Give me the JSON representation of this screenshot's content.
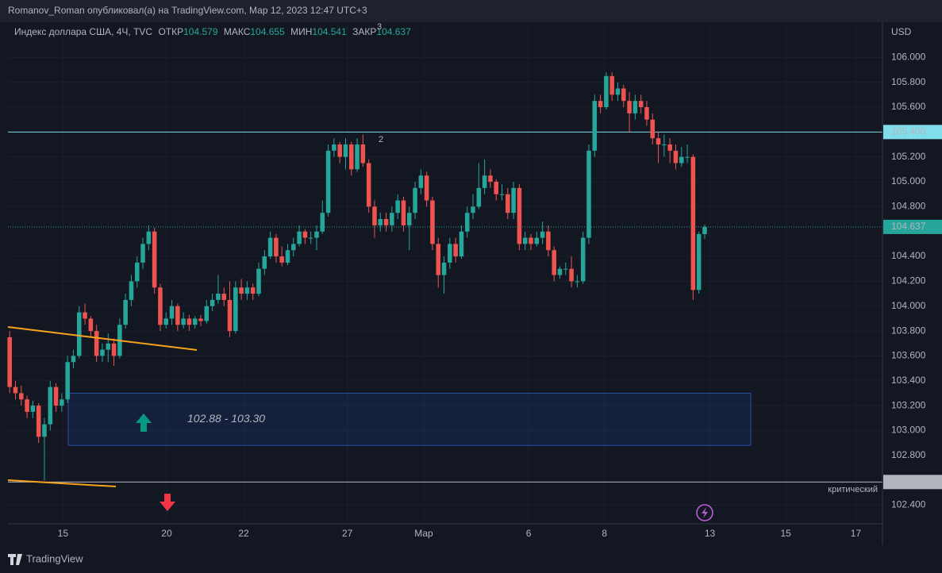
{
  "page": {
    "header": "Romanov_Roman опубликовал(а) на TradingView.com, Мар 12, 2023 12:47 UTC+3",
    "footer": "TradingView"
  },
  "chart_data": {
    "type": "candlestick",
    "symbol": "Индекс доллара США, 4Ч, TVC",
    "legend_labels": [
      "ОТКР",
      "МАКС",
      "МИН",
      "ЗАКР"
    ],
    "currency": "USD",
    "up_color": "#26a69a",
    "down_color": "#ef5350",
    "candles": [
      [
        103.75,
        103.8,
        103.3,
        103.35
      ],
      [
        103.35,
        103.4,
        103.25,
        103.3
      ],
      [
        103.3,
        103.36,
        103.2,
        103.25
      ],
      [
        103.25,
        103.28,
        103.1,
        103.15
      ],
      [
        103.15,
        103.24,
        103.1,
        103.2
      ],
      [
        103.2,
        103.22,
        102.9,
        102.95
      ],
      [
        102.95,
        103.1,
        102.6,
        103.05
      ],
      [
        103.05,
        103.4,
        103.0,
        103.35
      ],
      [
        103.35,
        103.38,
        103.15,
        103.2
      ],
      [
        103.2,
        103.3,
        103.15,
        103.25
      ],
      [
        103.25,
        103.6,
        103.22,
        103.55
      ],
      [
        103.55,
        103.65,
        103.5,
        103.6
      ],
      [
        103.6,
        104.0,
        103.58,
        103.95
      ],
      [
        103.95,
        104.02,
        103.85,
        103.9
      ],
      [
        103.9,
        103.92,
        103.75,
        103.8
      ],
      [
        103.8,
        103.85,
        103.55,
        103.6
      ],
      [
        103.6,
        103.7,
        103.55,
        103.65
      ],
      [
        103.65,
        103.78,
        103.55,
        103.7
      ],
      [
        103.7,
        103.74,
        103.52,
        103.6
      ],
      [
        103.6,
        103.9,
        103.58,
        103.85
      ],
      [
        103.85,
        104.1,
        103.82,
        104.05
      ],
      [
        104.05,
        104.25,
        104.0,
        104.2
      ],
      [
        104.2,
        104.4,
        104.15,
        104.35
      ],
      [
        104.35,
        104.55,
        104.3,
        104.5
      ],
      [
        104.5,
        104.65,
        104.45,
        104.6
      ],
      [
        104.6,
        104.63,
        104.1,
        104.15
      ],
      [
        104.15,
        104.18,
        103.8,
        103.85
      ],
      [
        103.85,
        103.95,
        103.82,
        103.9
      ],
      [
        103.9,
        104.05,
        103.85,
        104.0
      ],
      [
        104.0,
        104.02,
        103.8,
        103.85
      ],
      [
        103.85,
        103.95,
        103.82,
        103.9
      ],
      [
        103.9,
        103.93,
        103.8,
        103.85
      ],
      [
        103.85,
        103.92,
        103.82,
        103.9
      ],
      [
        103.9,
        103.93,
        103.84,
        103.88
      ],
      [
        103.88,
        104.05,
        103.86,
        104.0
      ],
      [
        104.0,
        104.1,
        103.96,
        104.05
      ],
      [
        104.05,
        104.25,
        104.02,
        104.1
      ],
      [
        104.1,
        104.15,
        104.0,
        104.05
      ],
      [
        104.05,
        104.2,
        103.75,
        103.8
      ],
      [
        103.8,
        104.2,
        103.78,
        104.15
      ],
      [
        104.15,
        104.22,
        104.05,
        104.1
      ],
      [
        104.1,
        104.2,
        104.05,
        104.15
      ],
      [
        104.15,
        104.18,
        104.05,
        104.1
      ],
      [
        104.1,
        104.35,
        104.08,
        104.3
      ],
      [
        104.3,
        104.45,
        104.25,
        104.4
      ],
      [
        104.4,
        104.6,
        104.38,
        104.55
      ],
      [
        104.55,
        104.58,
        104.35,
        104.4
      ],
      [
        104.4,
        104.48,
        104.32,
        104.35
      ],
      [
        104.35,
        104.5,
        104.33,
        104.45
      ],
      [
        104.45,
        104.55,
        104.4,
        104.5
      ],
      [
        104.5,
        104.65,
        104.48,
        104.6
      ],
      [
        104.6,
        104.62,
        104.5,
        104.55
      ],
      [
        104.55,
        104.6,
        104.5,
        104.55
      ],
      [
        104.55,
        104.65,
        104.45,
        104.6
      ],
      [
        104.6,
        104.85,
        104.58,
        104.75
      ],
      [
        104.75,
        105.3,
        104.72,
        105.25
      ],
      [
        105.25,
        105.35,
        105.2,
        105.3
      ],
      [
        105.3,
        105.32,
        105.15,
        105.2
      ],
      [
        105.2,
        105.35,
        105.1,
        105.3
      ],
      [
        105.3,
        105.32,
        105.05,
        105.1
      ],
      [
        105.1,
        105.35,
        105.08,
        105.3
      ],
      [
        105.3,
        105.38,
        105.12,
        105.15
      ],
      [
        105.15,
        105.18,
        104.75,
        104.8
      ],
      [
        104.8,
        104.85,
        104.55,
        104.65
      ],
      [
        104.65,
        104.75,
        104.6,
        104.7
      ],
      [
        104.7,
        104.75,
        104.6,
        104.65
      ],
      [
        104.65,
        104.8,
        104.6,
        104.75
      ],
      [
        104.75,
        104.9,
        104.7,
        104.85
      ],
      [
        104.85,
        104.88,
        104.6,
        104.65
      ],
      [
        104.65,
        104.8,
        104.45,
        104.75
      ],
      [
        104.75,
        105.0,
        104.7,
        104.95
      ],
      [
        104.95,
        105.1,
        104.9,
        105.05
      ],
      [
        105.05,
        105.08,
        104.8,
        104.85
      ],
      [
        104.85,
        104.88,
        104.45,
        104.5
      ],
      [
        104.5,
        104.55,
        104.15,
        104.25
      ],
      [
        104.25,
        104.4,
        104.1,
        104.35
      ],
      [
        104.35,
        104.55,
        104.3,
        104.5
      ],
      [
        104.5,
        104.55,
        104.35,
        104.4
      ],
      [
        104.4,
        104.65,
        104.38,
        104.6
      ],
      [
        104.6,
        104.8,
        104.55,
        104.75
      ],
      [
        104.75,
        104.9,
        104.7,
        104.8
      ],
      [
        104.8,
        105.15,
        104.78,
        104.95
      ],
      [
        104.95,
        105.18,
        104.9,
        105.05
      ],
      [
        105.05,
        105.1,
        104.95,
        105.0
      ],
      [
        105.0,
        105.02,
        104.85,
        104.9
      ],
      [
        104.9,
        104.98,
        104.85,
        104.9
      ],
      [
        104.9,
        104.95,
        104.7,
        104.75
      ],
      [
        104.75,
        105.0,
        104.7,
        104.95
      ],
      [
        104.95,
        104.98,
        104.45,
        104.5
      ],
      [
        104.5,
        104.6,
        104.45,
        104.55
      ],
      [
        104.55,
        104.58,
        104.45,
        104.5
      ],
      [
        104.5,
        104.6,
        104.48,
        104.55
      ],
      [
        104.55,
        104.68,
        104.5,
        104.6
      ],
      [
        104.6,
        104.65,
        104.4,
        104.45
      ],
      [
        104.45,
        104.48,
        104.2,
        104.25
      ],
      [
        104.25,
        104.32,
        104.22,
        104.3
      ],
      [
        104.3,
        104.35,
        104.25,
        104.3
      ],
      [
        104.3,
        104.4,
        104.15,
        104.2
      ],
      [
        104.2,
        104.25,
        104.15,
        104.2
      ],
      [
        104.2,
        104.6,
        104.18,
        104.55
      ],
      [
        104.55,
        105.3,
        104.5,
        105.25
      ],
      [
        105.25,
        105.7,
        105.2,
        105.65
      ],
      [
        105.65,
        105.7,
        105.55,
        105.6
      ],
      [
        105.6,
        105.88,
        105.58,
        105.85
      ],
      [
        105.85,
        105.88,
        105.65,
        105.7
      ],
      [
        105.7,
        105.8,
        105.65,
        105.75
      ],
      [
        105.75,
        105.78,
        105.6,
        105.65
      ],
      [
        105.65,
        105.72,
        105.4,
        105.55
      ],
      [
        105.55,
        105.7,
        105.5,
        105.65
      ],
      [
        105.65,
        105.7,
        105.55,
        105.6
      ],
      [
        105.6,
        105.65,
        105.45,
        105.5
      ],
      [
        105.5,
        105.55,
        105.3,
        105.35
      ],
      [
        105.35,
        105.4,
        105.15,
        105.3
      ],
      [
        105.3,
        105.38,
        105.2,
        105.3
      ],
      [
        105.3,
        105.35,
        105.15,
        105.25
      ],
      [
        105.25,
        105.3,
        105.1,
        105.15
      ],
      [
        105.15,
        105.28,
        105.12,
        105.2
      ],
      [
        105.2,
        105.3,
        105.15,
        105.2
      ],
      [
        105.2,
        105.22,
        104.05,
        104.13
      ],
      [
        104.13,
        104.6,
        104.1,
        104.58
      ],
      [
        104.579,
        104.655,
        104.541,
        104.637
      ]
    ],
    "xlim": [
      -0.3,
      150.7
    ],
    "xticks": [
      {
        "value": 9.2,
        "label": "15"
      },
      {
        "value": 27.1,
        "label": "20"
      },
      {
        "value": 40.4,
        "label": "22"
      },
      {
        "value": 58.3,
        "label": "27"
      },
      {
        "value": 71.5,
        "label": "Мар"
      },
      {
        "value": 89.6,
        "label": "6"
      },
      {
        "value": 102.7,
        "label": "8"
      },
      {
        "value": 120.9,
        "label": "13"
      },
      {
        "value": 134.0,
        "label": "15"
      },
      {
        "value": 146.1,
        "label": "17"
      }
    ],
    "ylim": [
      102.25,
      106.27
    ],
    "yticks": [
      {
        "value": 106.0,
        "label": "106.000"
      },
      {
        "value": 105.8,
        "label": "105.800"
      },
      {
        "value": 105.6,
        "label": "105.600"
      },
      {
        "value": 105.2,
        "label": "105.200"
      },
      {
        "value": 105.0,
        "label": "105.000"
      },
      {
        "value": 104.8,
        "label": "104.800"
      },
      {
        "value": 104.4,
        "label": "104.400"
      },
      {
        "value": 104.2,
        "label": "104.200"
      },
      {
        "value": 104.0,
        "label": "104.000"
      },
      {
        "value": 103.8,
        "label": "103.800"
      },
      {
        "value": 103.6,
        "label": "103.600"
      },
      {
        "value": 103.4,
        "label": "103.400"
      },
      {
        "value": 103.2,
        "label": "103.200"
      },
      {
        "value": 103.0,
        "label": "103.000"
      },
      {
        "value": 102.8,
        "label": "102.800"
      },
      {
        "value": 102.4,
        "label": "102.400"
      }
    ],
    "grid": true,
    "level": {
      "value": 105.4,
      "label": "105.400",
      "color": "#80deea"
    },
    "critical": {
      "value": 102.586,
      "text": "критический",
      "color": "#b2b5be"
    },
    "zone": [
      102.88,
      103.3
    ],
    "zone_label": "102.88 - 103.30",
    "annotations": [
      "2",
      "3"
    ]
  }
}
